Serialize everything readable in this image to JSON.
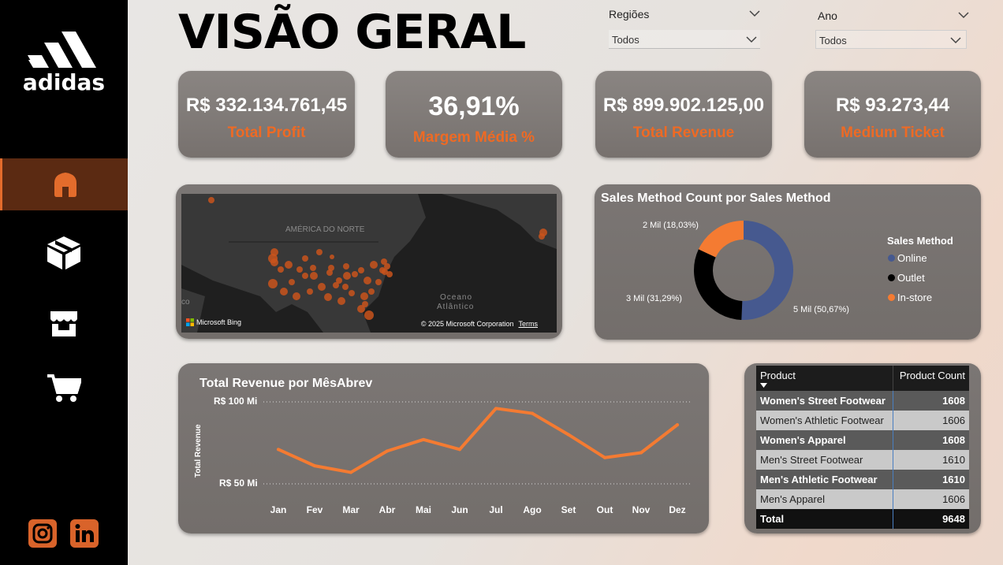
{
  "brand": {
    "name": "adidas",
    "accent": "#e36c2c",
    "sidebar_bg": "#000000"
  },
  "page": {
    "title": "VISÃO GERAL"
  },
  "slicers": {
    "regioes": {
      "label": "Regiões",
      "value": "Todos"
    },
    "ano": {
      "label": "Ano",
      "value": "Todos"
    }
  },
  "nav": [
    {
      "icon": "home-icon",
      "active": true
    },
    {
      "icon": "package-icon",
      "active": false
    },
    {
      "icon": "store-icon",
      "active": false
    },
    {
      "icon": "cart-icon",
      "active": false
    }
  ],
  "social": [
    {
      "icon": "instagram-icon"
    },
    {
      "icon": "linkedin-icon"
    }
  ],
  "kpis": [
    {
      "value": "R$ 332.134.761,45",
      "label": "Total Profit"
    },
    {
      "value": "36,91%",
      "label": "Margem Média %"
    },
    {
      "value": "R$ 899.902.125,00",
      "label": "Total Revenue"
    },
    {
      "value": "R$ 93.273,44",
      "label": "Medium Ticket"
    }
  ],
  "map": {
    "region_label": "AMÉRICA DO NORTE",
    "ocean_label_1": "Oceano",
    "ocean_label_2": "Atlântico",
    "edge_label": "co",
    "provider": "Microsoft Bing",
    "copyright": "© 2025 Microsoft Corporation",
    "terms": "Terms"
  },
  "donut": {
    "title": "Sales Method Count por Sales Method",
    "legend_title": "Sales Method",
    "labels": {
      "online": "5 Mil (50,67%)",
      "outlet": "3 Mil (31,29%)",
      "instore": "2 Mil (18,03%)"
    }
  },
  "line": {
    "title": "Total Revenue por MêsAbrev",
    "ylabel": "Total Revenue",
    "y_top_label": "R$ 100 Mi",
    "y_bottom_label": "R$ 50 Mi"
  },
  "table": {
    "headers": [
      "Product",
      "Product Count"
    ],
    "rows": [
      {
        "product": "Women's Street Footwear",
        "count": "1608"
      },
      {
        "product": "Women's Athletic Footwear",
        "count": "1606"
      },
      {
        "product": "Women's Apparel",
        "count": "1608"
      },
      {
        "product": "Men's Street Footwear",
        "count": "1610"
      },
      {
        "product": "Men's Athletic Footwear",
        "count": "1610"
      },
      {
        "product": "Men's Apparel",
        "count": "1606"
      }
    ],
    "total": {
      "label": "Total",
      "count": "9648"
    }
  },
  "chart_data": [
    {
      "type": "pie",
      "title": "Sales Method Count por Sales Method",
      "legend_title": "Sales Method",
      "categories": [
        "Online",
        "Outlet",
        "In-store"
      ],
      "values": [
        50.67,
        31.29,
        18.03
      ],
      "colors": [
        "#46598f",
        "#000000",
        "#f47b32"
      ],
      "donut": true
    },
    {
      "type": "line",
      "title": "Total Revenue por MêsAbrev",
      "ylabel": "Total Revenue",
      "categories": [
        "Jan",
        "Fev",
        "Mar",
        "Abr",
        "Mai",
        "Jun",
        "Jul",
        "Ago",
        "Set",
        "Out",
        "Nov",
        "Dez"
      ],
      "series": [
        {
          "values": [
            71,
            61,
            57,
            70,
            77,
            71,
            96,
            93,
            80,
            66,
            69,
            86
          ]
        }
      ],
      "yticks": [
        50,
        100
      ],
      "color": "#f47b32"
    }
  ]
}
